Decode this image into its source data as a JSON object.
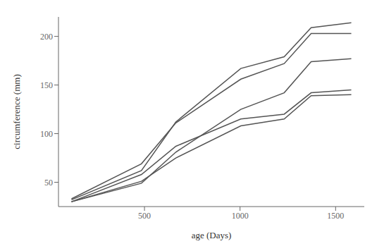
{
  "chart_data": {
    "type": "line",
    "xlabel": "age (Days)",
    "ylabel": "circumference (mm)",
    "x": [
      118,
      484,
      664,
      1004,
      1231,
      1372,
      1582
    ],
    "series": [
      {
        "color": "#555555",
        "values": [
          30,
          58,
          87,
          115,
          120,
          142,
          145
        ]
      },
      {
        "color": "#555555",
        "values": [
          33,
          69,
          111,
          156,
          172,
          203,
          203
        ]
      },
      {
        "color": "#555555",
        "values": [
          30,
          51,
          75,
          108,
          115,
          139,
          140
        ]
      },
      {
        "color": "#555555",
        "values": [
          32,
          62,
          112,
          167,
          179,
          209,
          214
        ]
      },
      {
        "color": "#555555",
        "values": [
          30,
          49,
          81,
          125,
          142,
          174,
          177
        ]
      }
    ],
    "xlim": [
      50,
      1650
    ],
    "ylim": [
      25,
      220
    ],
    "xticks": [
      500,
      1000,
      1500
    ],
    "yticks": [
      50,
      100,
      150,
      200
    ],
    "grid": false
  }
}
